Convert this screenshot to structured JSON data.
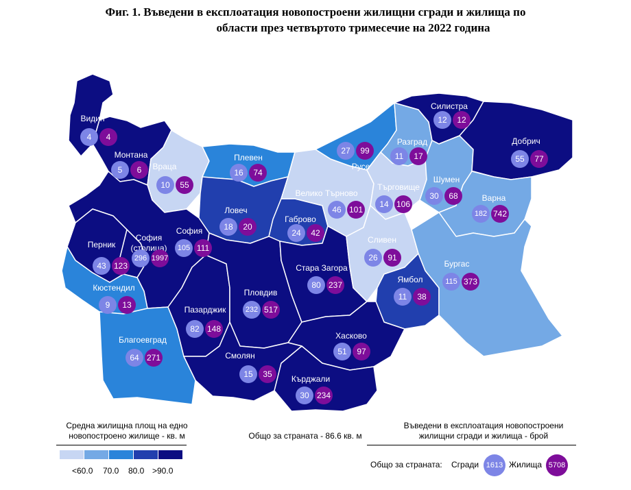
{
  "title": {
    "line1": "Фиг. 1. Въведени в експлоатация новопостроени жилищни сгради и жилища по",
    "line2": "области през четвъртото тримесечие на 2022 година"
  },
  "colors": {
    "lt60": "#c7d6f3",
    "c60_70": "#74a9e5",
    "c70_80": "#2a84da",
    "c80_90": "#213fae",
    "gt90": "#0c0d82",
    "buildings_circle": "#7d85e6",
    "dwellings_circle": "#7e0d9a"
  },
  "regions": [
    {
      "name": "Видин",
      "buildings": "4",
      "dwellings": "4",
      "class": "gt90"
    },
    {
      "name": "Монтана",
      "buildings": "5",
      "dwellings": "6",
      "class": "gt90"
    },
    {
      "name": "Враца",
      "buildings": "10",
      "dwellings": "55",
      "class": "lt60"
    },
    {
      "name": "Плевен",
      "buildings": "16",
      "dwellings": "74",
      "class": "c70_80"
    },
    {
      "name": "Ловеч",
      "buildings": "18",
      "dwellings": "20",
      "class": "c80_90"
    },
    {
      "name": "Габрово",
      "buildings": "24",
      "dwellings": "42",
      "class": "c80_90"
    },
    {
      "name": "Велико Търново",
      "buildings": "46",
      "dwellings": "101",
      "class": "lt60"
    },
    {
      "name": "Русе",
      "buildings": "27",
      "dwellings": "99",
      "class": "c70_80"
    },
    {
      "name": "Разград",
      "buildings": "11",
      "dwellings": "17",
      "class": "c60_70"
    },
    {
      "name": "Търговище",
      "buildings": "14",
      "dwellings": "106",
      "class": "lt60"
    },
    {
      "name": "Силистра",
      "buildings": "12",
      "dwellings": "12",
      "class": "gt90"
    },
    {
      "name": "Шумен",
      "buildings": "30",
      "dwellings": "68",
      "class": "c60_70"
    },
    {
      "name": "Добрич",
      "buildings": "55",
      "dwellings": "77",
      "class": "gt90"
    },
    {
      "name": "Варна",
      "buildings": "182",
      "dwellings": "742",
      "class": "c60_70"
    },
    {
      "name": "София",
      "buildings": "105",
      "dwellings": "111",
      "class": "gt90"
    },
    {
      "name": "София (столица)",
      "buildings": "296",
      "dwellings": "1997",
      "class": "gt90"
    },
    {
      "name": "Перник",
      "buildings": "43",
      "dwellings": "123",
      "class": "gt90"
    },
    {
      "name": "Кюстендил",
      "buildings": "9",
      "dwellings": "13",
      "class": "c70_80"
    },
    {
      "name": "Благоевград",
      "buildings": "64",
      "dwellings": "271",
      "class": "c70_80"
    },
    {
      "name": "Пазарджик",
      "buildings": "82",
      "dwellings": "148",
      "class": "gt90"
    },
    {
      "name": "Пловдив",
      "buildings": "232",
      "dwellings": "517",
      "class": "gt90"
    },
    {
      "name": "Стара Загора",
      "buildings": "80",
      "dwellings": "237",
      "class": "gt90"
    },
    {
      "name": "Сливен",
      "buildings": "26",
      "dwellings": "91",
      "class": "lt60"
    },
    {
      "name": "Ямбол",
      "buildings": "11",
      "dwellings": "38",
      "class": "c80_90"
    },
    {
      "name": "Бургас",
      "buildings": "115",
      "dwellings": "373",
      "class": "c60_70"
    },
    {
      "name": "Хасково",
      "buildings": "51",
      "dwellings": "97",
      "class": "gt90"
    },
    {
      "name": "Смолян",
      "buildings": "15",
      "dwellings": "35",
      "class": "gt90"
    },
    {
      "name": "Кърджали",
      "buildings": "30",
      "dwellings": "234",
      "class": "gt90"
    }
  ],
  "legend": {
    "area_title": "Средна жилищна площ на едно новопостроено жилище - кв. м",
    "country_avg": "Общо за страната - 86.6 кв. м",
    "count_title": "Въведени в експлоатация новопостроени жилищни сгради и жилища - брой",
    "scale_labels": [
      "<60.0",
      "70.0",
      "80.0",
      ">90.0"
    ],
    "totals_label": "Общо за страната:",
    "buildings_label": "Сгради",
    "buildings_total": "1613",
    "dwellings_label": "Жилища",
    "dwellings_total": "5708"
  }
}
